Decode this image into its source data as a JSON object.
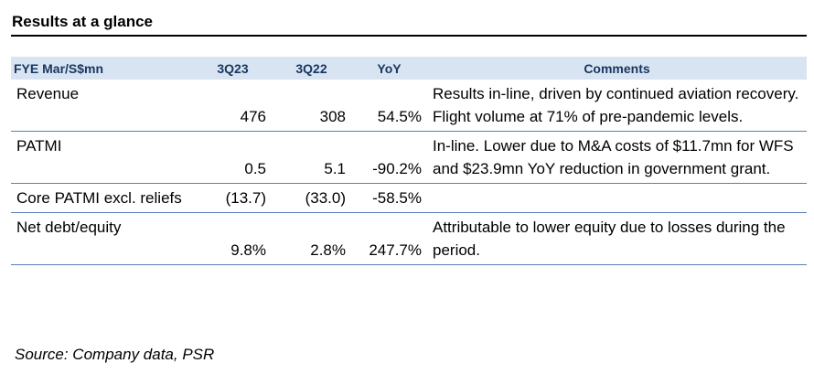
{
  "title": "Results at a glance",
  "columns": {
    "label": "FYE Mar/S$mn",
    "q1": "3Q23",
    "q2": "3Q22",
    "yoy": "YoY",
    "comments": "Comments"
  },
  "rows": [
    {
      "label": "Revenue",
      "q1": "476",
      "q2": "308",
      "yoy": "54.5%",
      "comment": "Results in-line, driven by continued aviation recovery. Flight volume at 71% of pre-pandemic levels."
    },
    {
      "label": "PATMI",
      "q1": "0.5",
      "q2": "5.1",
      "yoy": "-90.2%",
      "comment": "In-line. Lower due to M&A costs of $11.7mn for WFS and $23.9mn YoY reduction in government grant."
    },
    {
      "label": "Core PATMI excl. reliefs",
      "q1": "(13.7)",
      "q2": "(33.0)",
      "yoy": "-58.5%",
      "comment": ""
    },
    {
      "label": "Net debt/equity",
      "q1": "9.8%",
      "q2": "2.8%",
      "yoy": "247.7%",
      "comment": "Attributable to lower equity due to losses during the period."
    }
  ],
  "source": "Source: Company data, PSR"
}
